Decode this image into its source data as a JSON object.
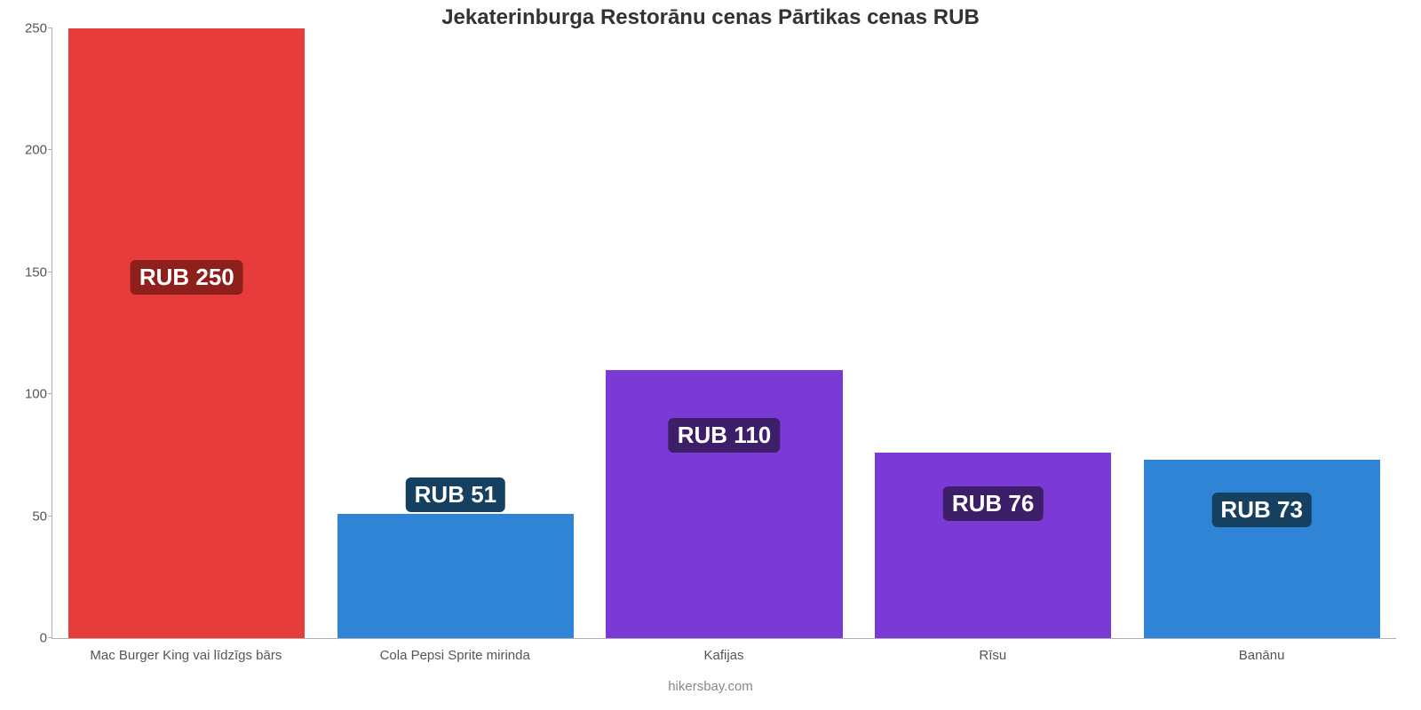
{
  "chart": {
    "type": "bar",
    "title": "Jekaterinburga Restorānu cenas Pārtikas cenas RUB",
    "title_fontsize": 24,
    "title_color": "#333333",
    "background_color": "#ffffff",
    "axis_color": "#b0b0b0",
    "ylim": [
      0,
      250
    ],
    "ytick_step": 50,
    "ytick_fontsize": 15,
    "ytick_color": "#555555",
    "xlabel_fontsize": 15,
    "xlabel_color": "#555555",
    "bar_width": 0.88,
    "value_label_fontsize": 26,
    "value_badge_radius": 6,
    "value_badge_text_color": "#ffffff",
    "categories": [
      "Mac Burger King vai līdzīgs bārs",
      "Cola Pepsi Sprite mirinda",
      "Kafijas",
      "Rīsu",
      "Banānu"
    ],
    "values": [
      250,
      51,
      110,
      76,
      73
    ],
    "value_labels": [
      "RUB 250",
      "RUB 51",
      "RUB 110",
      "RUB 76",
      "RUB 73"
    ],
    "bar_colors": [
      "#e73c3c",
      "#3084d6",
      "#7b3ad6",
      "#7b3ad6",
      "#3084d6"
    ],
    "badge_colors": [
      "#8f1f1b",
      "#16405f",
      "#3d1f69",
      "#3d1f69",
      "#16405f"
    ],
    "yticks": [
      {
        "value": 0,
        "label": "0"
      },
      {
        "value": 50,
        "label": "50"
      },
      {
        "value": 100,
        "label": "100"
      },
      {
        "value": 150,
        "label": "150"
      },
      {
        "value": 200,
        "label": "200"
      },
      {
        "value": 250,
        "label": "250"
      }
    ],
    "footer": "hikersbay.com",
    "footer_fontsize": 15,
    "footer_color": "#888888"
  }
}
